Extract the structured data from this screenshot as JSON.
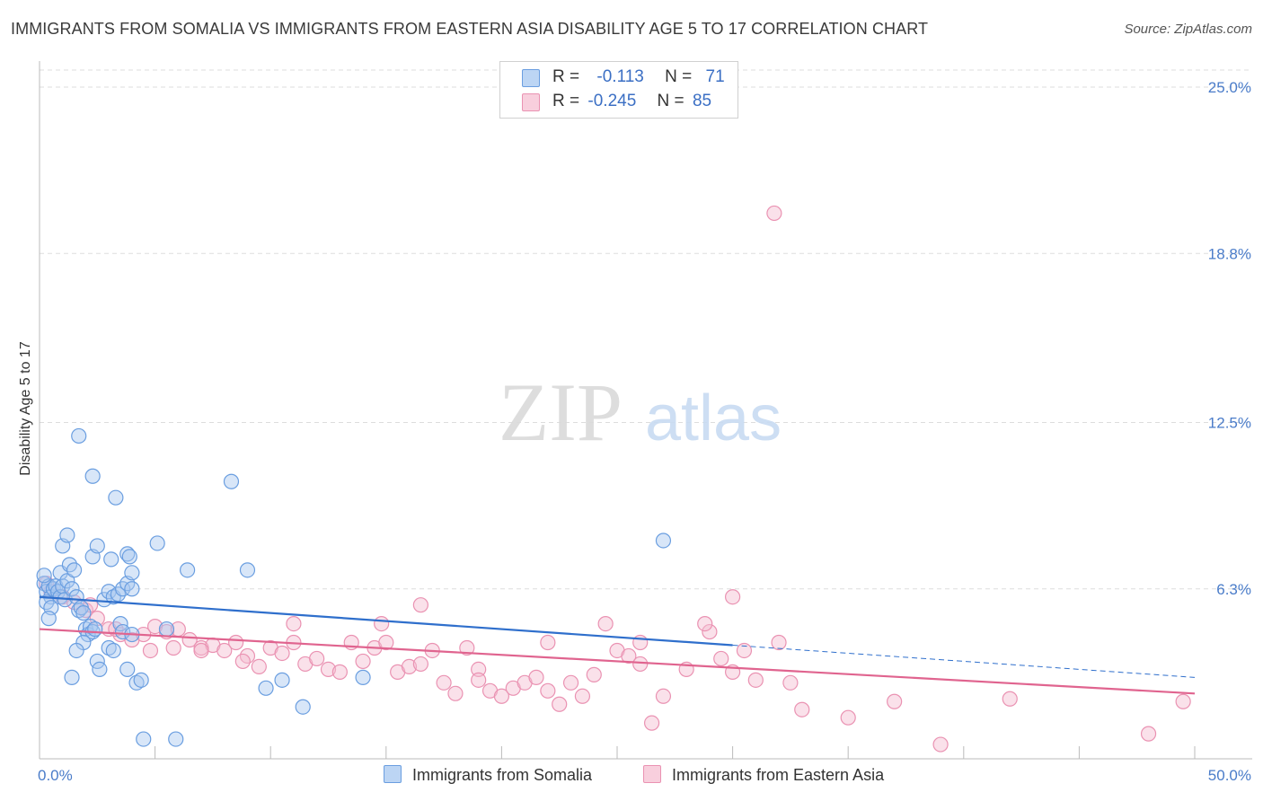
{
  "title": "IMMIGRANTS FROM SOMALIA VS IMMIGRANTS FROM EASTERN ASIA DISABILITY AGE 5 TO 17 CORRELATION CHART",
  "source": "Source: ZipAtlas.com",
  "watermark": {
    "zip": "ZIP",
    "atlas": "atlas"
  },
  "legend": {
    "rows": [
      {
        "r_label": "R =",
        "r_value": "-0.113",
        "n_label": "N =",
        "n_value": "71"
      },
      {
        "r_label": "R =",
        "r_value": "-0.245",
        "n_label": "N =",
        "n_value": "85"
      }
    ]
  },
  "bottom_legend": {
    "series1": "Immigrants from Somalia",
    "series2": "Immigrants from Eastern Asia"
  },
  "colors": {
    "somalia_fill": "#a9c8f0",
    "somalia_stroke": "#6a9ee0",
    "somalia_line": "#2f6fcc",
    "easia_fill": "#f5bcd0",
    "easia_stroke": "#ea92b2",
    "easia_line": "#e0648f",
    "tick": "#4a7cc9",
    "grid": "#dddddd"
  },
  "chart_data": {
    "type": "scatter",
    "title": "IMMIGRANTS FROM SOMALIA VS IMMIGRANTS FROM EASTERN ASIA DISABILITY AGE 5 TO 17 CORRELATION CHART",
    "xlabel": "",
    "ylabel": "Disability Age 5 to 17",
    "xlim": [
      0,
      50
    ],
    "ylim": [
      0,
      25
    ],
    "x_tick_labels": [
      {
        "value": 0,
        "label": "0.0%"
      },
      {
        "value": 50,
        "label": "50.0%"
      }
    ],
    "y_tick_labels": [
      {
        "value": 6.3,
        "label": "6.3%"
      },
      {
        "value": 12.5,
        "label": "12.5%"
      },
      {
        "value": 18.8,
        "label": "18.8%"
      },
      {
        "value": 25.0,
        "label": "25.0%"
      }
    ],
    "series": [
      {
        "name": "Immigrants from Somalia",
        "R": -0.113,
        "N": 71,
        "trend": {
          "x0": 0,
          "y0": 6.0,
          "x1": 30,
          "y1": 4.2,
          "dashed_to_x": 50,
          "dashed_to_y": 3.0
        },
        "points": [
          [
            0.2,
            6.5
          ],
          [
            0.3,
            6.2
          ],
          [
            0.4,
            6.4
          ],
          [
            0.5,
            6.0
          ],
          [
            0.6,
            6.3
          ],
          [
            0.2,
            6.8
          ],
          [
            0.3,
            5.8
          ],
          [
            0.5,
            5.6
          ],
          [
            0.4,
            5.2
          ],
          [
            0.7,
            6.4
          ],
          [
            0.8,
            6.2
          ],
          [
            0.9,
            6.0
          ],
          [
            1.0,
            6.4
          ],
          [
            1.1,
            5.9
          ],
          [
            0.9,
            6.9
          ],
          [
            1.2,
            6.6
          ],
          [
            1.3,
            7.2
          ],
          [
            1.4,
            6.3
          ],
          [
            1.5,
            7.0
          ],
          [
            1.6,
            6.0
          ],
          [
            1.7,
            5.5
          ],
          [
            1.8,
            5.6
          ],
          [
            1.9,
            5.4
          ],
          [
            2.0,
            4.8
          ],
          [
            2.1,
            4.6
          ],
          [
            2.2,
            4.9
          ],
          [
            2.3,
            4.7
          ],
          [
            2.4,
            4.8
          ],
          [
            1.9,
            4.3
          ],
          [
            1.6,
            4.0
          ],
          [
            1.4,
            3.0
          ],
          [
            2.5,
            3.6
          ],
          [
            2.6,
            3.3
          ],
          [
            3.0,
            4.1
          ],
          [
            3.2,
            4.0
          ],
          [
            3.5,
            5.0
          ],
          [
            3.6,
            4.7
          ],
          [
            3.8,
            3.3
          ],
          [
            4.0,
            4.6
          ],
          [
            4.2,
            2.8
          ],
          [
            4.4,
            2.9
          ],
          [
            2.8,
            5.9
          ],
          [
            3.0,
            6.2
          ],
          [
            3.2,
            6.0
          ],
          [
            3.4,
            6.1
          ],
          [
            3.6,
            6.3
          ],
          [
            3.8,
            6.5
          ],
          [
            4.0,
            6.3
          ],
          [
            1.0,
            7.9
          ],
          [
            1.2,
            8.3
          ],
          [
            2.3,
            7.5
          ],
          [
            2.5,
            7.9
          ],
          [
            3.1,
            7.4
          ],
          [
            3.8,
            7.6
          ],
          [
            3.9,
            7.5
          ],
          [
            4.0,
            6.9
          ],
          [
            5.1,
            8.0
          ],
          [
            6.4,
            7.0
          ],
          [
            9.0,
            7.0
          ],
          [
            3.3,
            9.7
          ],
          [
            2.3,
            10.5
          ],
          [
            8.3,
            10.3
          ],
          [
            1.7,
            12.0
          ],
          [
            27.0,
            8.1
          ],
          [
            4.5,
            0.7
          ],
          [
            5.9,
            0.7
          ],
          [
            9.8,
            2.6
          ],
          [
            10.5,
            2.9
          ],
          [
            11.4,
            1.9
          ],
          [
            14.0,
            3.0
          ],
          [
            5.5,
            4.8
          ]
        ]
      },
      {
        "name": "Immigrants from Eastern Asia",
        "R": -0.245,
        "N": 85,
        "trend": {
          "x0": 0,
          "y0": 4.8,
          "x1": 50,
          "y1": 2.4
        },
        "points": [
          [
            0.3,
            6.5
          ],
          [
            0.5,
            6.2
          ],
          [
            1.0,
            6.0
          ],
          [
            1.5,
            5.8
          ],
          [
            2.0,
            5.5
          ],
          [
            2.2,
            5.7
          ],
          [
            2.5,
            5.2
          ],
          [
            3.0,
            4.8
          ],
          [
            3.5,
            4.6
          ],
          [
            4.0,
            4.4
          ],
          [
            4.5,
            4.6
          ],
          [
            5.0,
            4.9
          ],
          [
            5.5,
            4.7
          ],
          [
            6.0,
            4.8
          ],
          [
            6.5,
            4.4
          ],
          [
            7.0,
            4.1
          ],
          [
            7.5,
            4.2
          ],
          [
            8.0,
            4.0
          ],
          [
            8.5,
            4.3
          ],
          [
            9.0,
            3.8
          ],
          [
            9.5,
            3.4
          ],
          [
            10.0,
            4.1
          ],
          [
            10.5,
            3.9
          ],
          [
            11.0,
            4.3
          ],
          [
            11.5,
            3.5
          ],
          [
            12.0,
            3.7
          ],
          [
            12.5,
            3.3
          ],
          [
            13.0,
            3.2
          ],
          [
            13.5,
            4.3
          ],
          [
            14.0,
            3.6
          ],
          [
            14.5,
            4.1
          ],
          [
            15.0,
            4.3
          ],
          [
            15.5,
            3.2
          ],
          [
            16.0,
            3.4
          ],
          [
            16.5,
            3.5
          ],
          [
            17.0,
            4.0
          ],
          [
            17.5,
            2.8
          ],
          [
            18.0,
            2.4
          ],
          [
            18.5,
            4.1
          ],
          [
            19.0,
            3.3
          ],
          [
            19.5,
            2.5
          ],
          [
            20.0,
            2.3
          ],
          [
            20.5,
            2.6
          ],
          [
            21.0,
            2.8
          ],
          [
            21.5,
            3.0
          ],
          [
            22.0,
            2.5
          ],
          [
            22.5,
            2.0
          ],
          [
            23.0,
            2.8
          ],
          [
            23.5,
            2.3
          ],
          [
            24.0,
            3.1
          ],
          [
            25.0,
            4.0
          ],
          [
            25.5,
            3.8
          ],
          [
            26.0,
            3.5
          ],
          [
            26.5,
            1.3
          ],
          [
            27.0,
            2.3
          ],
          [
            28.0,
            3.3
          ],
          [
            29.0,
            4.7
          ],
          [
            29.5,
            3.7
          ],
          [
            30.0,
            3.2
          ],
          [
            30.5,
            4.0
          ],
          [
            31.0,
            2.9
          ],
          [
            32.0,
            4.3
          ],
          [
            32.5,
            2.8
          ],
          [
            33.0,
            1.8
          ],
          [
            35.0,
            1.5
          ],
          [
            37.0,
            2.1
          ],
          [
            39.0,
            0.5
          ],
          [
            42.0,
            2.2
          ],
          [
            48.0,
            0.9
          ],
          [
            49.5,
            2.1
          ],
          [
            16.5,
            5.7
          ],
          [
            24.5,
            5.0
          ],
          [
            26.0,
            4.3
          ],
          [
            28.8,
            5.0
          ],
          [
            30.0,
            6.0
          ],
          [
            22.0,
            4.3
          ],
          [
            19.0,
            2.9
          ],
          [
            14.8,
            5.0
          ],
          [
            11.0,
            5.0
          ],
          [
            7.0,
            4.0
          ],
          [
            4.8,
            4.0
          ],
          [
            3.3,
            4.8
          ],
          [
            5.8,
            4.1
          ],
          [
            31.8,
            20.3
          ],
          [
            8.8,
            3.6
          ]
        ]
      }
    ]
  }
}
